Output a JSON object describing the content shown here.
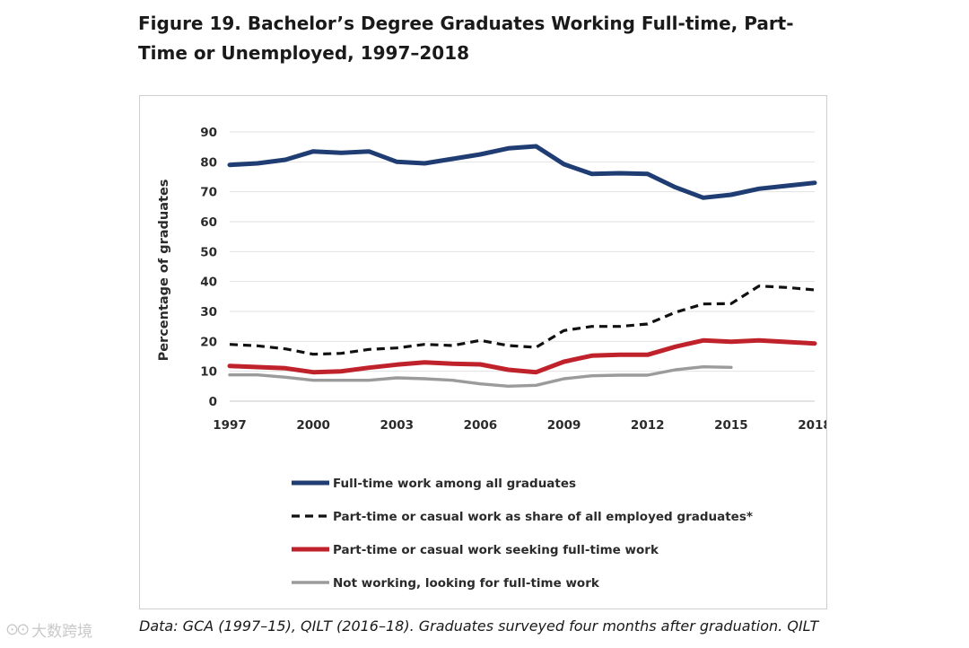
{
  "page": {
    "title": "Figure 19. Bachelor’s Degree Graduates Working Full-time, Part-Time or Unemployed, 1997–2018",
    "source_note": "Data: GCA (1997–15), QILT (2016–18). Graduates surveyed four months after graduation. QILT",
    "watermark_text": "大数跨境",
    "watermark_logo": "⊙⊙"
  },
  "chart_data": {
    "type": "line",
    "title": "Figure 19. Bachelor’s Degree Graduates Working Full-time, Part-Time or Unemployed, 1997–2018",
    "xlabel": "",
    "ylabel": "Percentage of graduates",
    "xlim": [
      1997,
      2018
    ],
    "ylim": [
      0,
      90
    ],
    "x_ticks": [
      1997,
      2000,
      2003,
      2006,
      2009,
      2012,
      2015,
      2018
    ],
    "y_ticks": [
      0,
      10,
      20,
      30,
      40,
      50,
      60,
      70,
      80,
      90
    ],
    "grid": true,
    "legend_position": "bottom",
    "series": [
      {
        "name": "Full-time work among all graduates",
        "color": "#1f3c73",
        "style": "solid",
        "x": [
          1997,
          1998,
          1999,
          2000,
          2001,
          2002,
          2003,
          2004,
          2005,
          2006,
          2007,
          2008,
          2009,
          2010,
          2011,
          2012,
          2013,
          2014,
          2015,
          2016,
          2017,
          2018
        ],
        "y": [
          79,
          79.5,
          80.7,
          83.5,
          83,
          83.5,
          80,
          79.5,
          81,
          82.5,
          84.5,
          85.2,
          79.2,
          76,
          76.2,
          76,
          71.5,
          68,
          69,
          71,
          72,
          73
        ]
      },
      {
        "name": "Part-time or casual work as share of all employed graduates*",
        "color": "#111111",
        "style": "dashed",
        "x": [
          1997,
          1998,
          1999,
          2000,
          2001,
          2002,
          2003,
          2004,
          2005,
          2006,
          2007,
          2008,
          2009,
          2010,
          2011,
          2012,
          2013,
          2014,
          2015,
          2016,
          2017,
          2018
        ],
        "y": [
          19,
          18.5,
          17.5,
          15.7,
          16,
          17.3,
          17.8,
          19,
          18.6,
          20.3,
          18.6,
          18,
          23.6,
          25,
          25,
          25.8,
          29.7,
          32.5,
          32.6,
          38.5,
          38,
          37.2
        ]
      },
      {
        "name": "Part-time or casual work seeking full-time work",
        "color": "#c0222b",
        "style": "solid",
        "x": [
          1997,
          1998,
          1999,
          2000,
          2001,
          2002,
          2003,
          2004,
          2005,
          2006,
          2007,
          2008,
          2009,
          2010,
          2011,
          2012,
          2013,
          2014,
          2015,
          2016,
          2017,
          2018
        ],
        "y": [
          11.8,
          11.4,
          11,
          9.7,
          10,
          11.2,
          12.2,
          13,
          12.5,
          12.3,
          10.5,
          9.7,
          13.2,
          15.2,
          15.5,
          15.5,
          18.2,
          20.3,
          19.9,
          20.3,
          19.8,
          19.3
        ]
      },
      {
        "name": "Not working, looking for full-time work",
        "color": "#9b9b9b",
        "style": "solid",
        "x": [
          1997,
          1998,
          1999,
          2000,
          2001,
          2002,
          2003,
          2004,
          2005,
          2006,
          2007,
          2008,
          2009,
          2010,
          2011,
          2012,
          2013,
          2014,
          2015
        ],
        "y": [
          8.8,
          8.8,
          8,
          7,
          7,
          7,
          7.8,
          7.5,
          7,
          5.8,
          5,
          5.3,
          7.5,
          8.5,
          8.7,
          8.7,
          10.5,
          11.5,
          11.3
        ]
      }
    ]
  }
}
